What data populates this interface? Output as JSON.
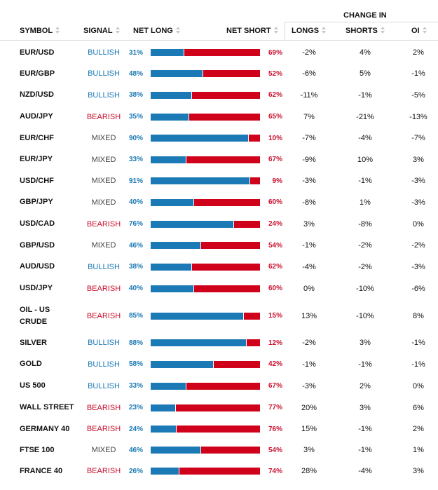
{
  "header": {
    "change_in": "CHANGE IN",
    "symbol": "SYMBOL",
    "signal": "SIGNAL",
    "net_long": "NET LONG",
    "net_short": "NET SHORT",
    "longs": "LONGS",
    "shorts": "SHORTS",
    "oi": "OI"
  },
  "colors": {
    "long": "#1b79b5",
    "short": "#d0021b",
    "bullish": "#1b79b5",
    "bearish": "#c8102e",
    "mixed": "#444444"
  },
  "rows": [
    {
      "symbol": "EUR/USD",
      "signal": "BULLISH",
      "net_long": "31%",
      "net_short": "69%",
      "longs": "-2%",
      "shorts": "4%",
      "oi": "2%"
    },
    {
      "symbol": "EUR/GBP",
      "signal": "BULLISH",
      "net_long": "48%",
      "net_short": "52%",
      "longs": "-6%",
      "shorts": "5%",
      "oi": "-1%"
    },
    {
      "symbol": "NZD/USD",
      "signal": "BULLISH",
      "net_long": "38%",
      "net_short": "62%",
      "longs": "-11%",
      "shorts": "-1%",
      "oi": "-5%"
    },
    {
      "symbol": "AUD/JPY",
      "signal": "BEARISH",
      "net_long": "35%",
      "net_short": "65%",
      "longs": "7%",
      "shorts": "-21%",
      "oi": "-13%"
    },
    {
      "symbol": "EUR/CHF",
      "signal": "MIXED",
      "net_long": "90%",
      "net_short": "10%",
      "longs": "-7%",
      "shorts": "-4%",
      "oi": "-7%"
    },
    {
      "symbol": "EUR/JPY",
      "signal": "MIXED",
      "net_long": "33%",
      "net_short": "67%",
      "longs": "-9%",
      "shorts": "10%",
      "oi": "3%"
    },
    {
      "symbol": "USD/CHF",
      "signal": "MIXED",
      "net_long": "91%",
      "net_short": "9%",
      "longs": "-3%",
      "shorts": "-1%",
      "oi": "-3%"
    },
    {
      "symbol": "GBP/JPY",
      "signal": "MIXED",
      "net_long": "40%",
      "net_short": "60%",
      "longs": "-8%",
      "shorts": "1%",
      "oi": "-3%"
    },
    {
      "symbol": "USD/CAD",
      "signal": "BEARISH",
      "net_long": "76%",
      "net_short": "24%",
      "longs": "3%",
      "shorts": "-8%",
      "oi": "0%"
    },
    {
      "symbol": "GBP/USD",
      "signal": "MIXED",
      "net_long": "46%",
      "net_short": "54%",
      "longs": "-1%",
      "shorts": "-2%",
      "oi": "-2%"
    },
    {
      "symbol": "AUD/USD",
      "signal": "BULLISH",
      "net_long": "38%",
      "net_short": "62%",
      "longs": "-4%",
      "shorts": "-2%",
      "oi": "-3%"
    },
    {
      "symbol": "USD/JPY",
      "signal": "BEARISH",
      "net_long": "40%",
      "net_short": "60%",
      "longs": "0%",
      "shorts": "-10%",
      "oi": "-6%"
    },
    {
      "symbol": "OIL - US CRUDE",
      "signal": "BEARISH",
      "net_long": "85%",
      "net_short": "15%",
      "longs": "13%",
      "shorts": "-10%",
      "oi": "8%"
    },
    {
      "symbol": "SILVER",
      "signal": "BULLISH",
      "net_long": "88%",
      "net_short": "12%",
      "longs": "-2%",
      "shorts": "3%",
      "oi": "-1%"
    },
    {
      "symbol": "GOLD",
      "signal": "BULLISH",
      "net_long": "58%",
      "net_short": "42%",
      "longs": "-1%",
      "shorts": "-1%",
      "oi": "-1%"
    },
    {
      "symbol": "US 500",
      "signal": "BULLISH",
      "net_long": "33%",
      "net_short": "67%",
      "longs": "-3%",
      "shorts": "2%",
      "oi": "0%"
    },
    {
      "symbol": "WALL STREET",
      "signal": "BEARISH",
      "net_long": "23%",
      "net_short": "77%",
      "longs": "20%",
      "shorts": "3%",
      "oi": "6%"
    },
    {
      "symbol": "GERMANY 40",
      "signal": "BEARISH",
      "net_long": "24%",
      "net_short": "76%",
      "longs": "15%",
      "shorts": "-1%",
      "oi": "2%"
    },
    {
      "symbol": "FTSE 100",
      "signal": "MIXED",
      "net_long": "46%",
      "net_short": "54%",
      "longs": "3%",
      "shorts": "-1%",
      "oi": "1%"
    },
    {
      "symbol": "FRANCE 40",
      "signal": "BEARISH",
      "net_long": "26%",
      "net_short": "74%",
      "longs": "28%",
      "shorts": "-4%",
      "oi": "3%"
    }
  ]
}
